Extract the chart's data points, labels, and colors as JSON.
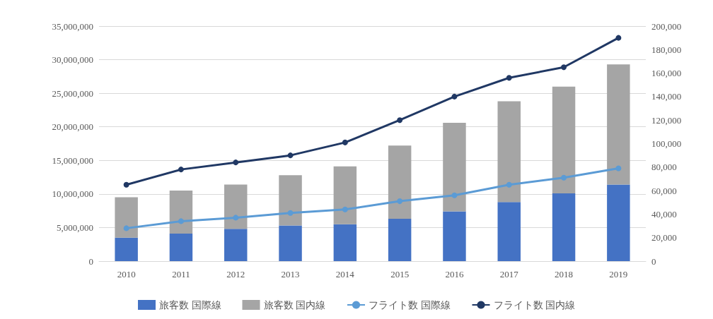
{
  "chart_data": {
    "type": "bar",
    "categories": [
      "2010",
      "2011",
      "2012",
      "2013",
      "2014",
      "2015",
      "2016",
      "2017",
      "2018",
      "2019"
    ],
    "stacked": true,
    "grid": "y",
    "legend": "bottom",
    "marker": "circle",
    "series": [
      {
        "name": "旅客数 国際線",
        "color": "#4472c4",
        "values": [
          3500000,
          4100000,
          4800000,
          5300000,
          5500000,
          6300000,
          7400000,
          8800000,
          10100000,
          11400000
        ]
      },
      {
        "name": "旅客数 国内線",
        "color": "#a5a5a5",
        "values": [
          6000000,
          6400000,
          6600000,
          7500000,
          8600000,
          10900000,
          13200000,
          15000000,
          15900000,
          17900000
        ]
      },
      {
        "name": "フライト数 国際線",
        "type": "line",
        "axis": "y2",
        "color": "#5b9bd5",
        "values": [
          28000,
          34000,
          37000,
          41000,
          44000,
          51000,
          56000,
          65000,
          71000,
          79000
        ]
      },
      {
        "name": "フライト数 国内線",
        "type": "line",
        "axis": "y2",
        "color": "#203864",
        "values": [
          65000,
          78000,
          84000,
          90000,
          101000,
          120000,
          140000,
          156000,
          165000,
          190000
        ]
      }
    ],
    "ylim": [
      0,
      35000000
    ],
    "yticks": [
      0,
      {
        "value": 5000000,
        "label": "5,000,000"
      },
      {
        "value": 10000000,
        "label": "10,000,000"
      },
      {
        "value": 15000000,
        "label": "15,000,000"
      },
      {
        "value": 20000000,
        "label": "20,000,000"
      },
      {
        "value": 25000000,
        "label": "25,000,000"
      },
      {
        "value": 30000000,
        "label": "30,000,000"
      },
      {
        "value": 35000000,
        "label": "35,000,000"
      }
    ],
    "y2lim": [
      0,
      200000
    ],
    "y2ticks": [
      0,
      {
        "value": 20000,
        "label": "20,000"
      },
      {
        "value": 40000,
        "label": "40,000"
      },
      {
        "value": 60000,
        "label": "60,000"
      },
      {
        "value": 80000,
        "label": "80,000"
      },
      {
        "value": 100000,
        "label": "100,000"
      },
      {
        "value": 120000,
        "label": "120,000"
      },
      {
        "value": 140000,
        "label": "140,000"
      },
      {
        "value": 160000,
        "label": "160,000"
      },
      {
        "value": 180000,
        "label": "180,000"
      },
      {
        "value": 200000,
        "label": "200,000"
      }
    ]
  }
}
